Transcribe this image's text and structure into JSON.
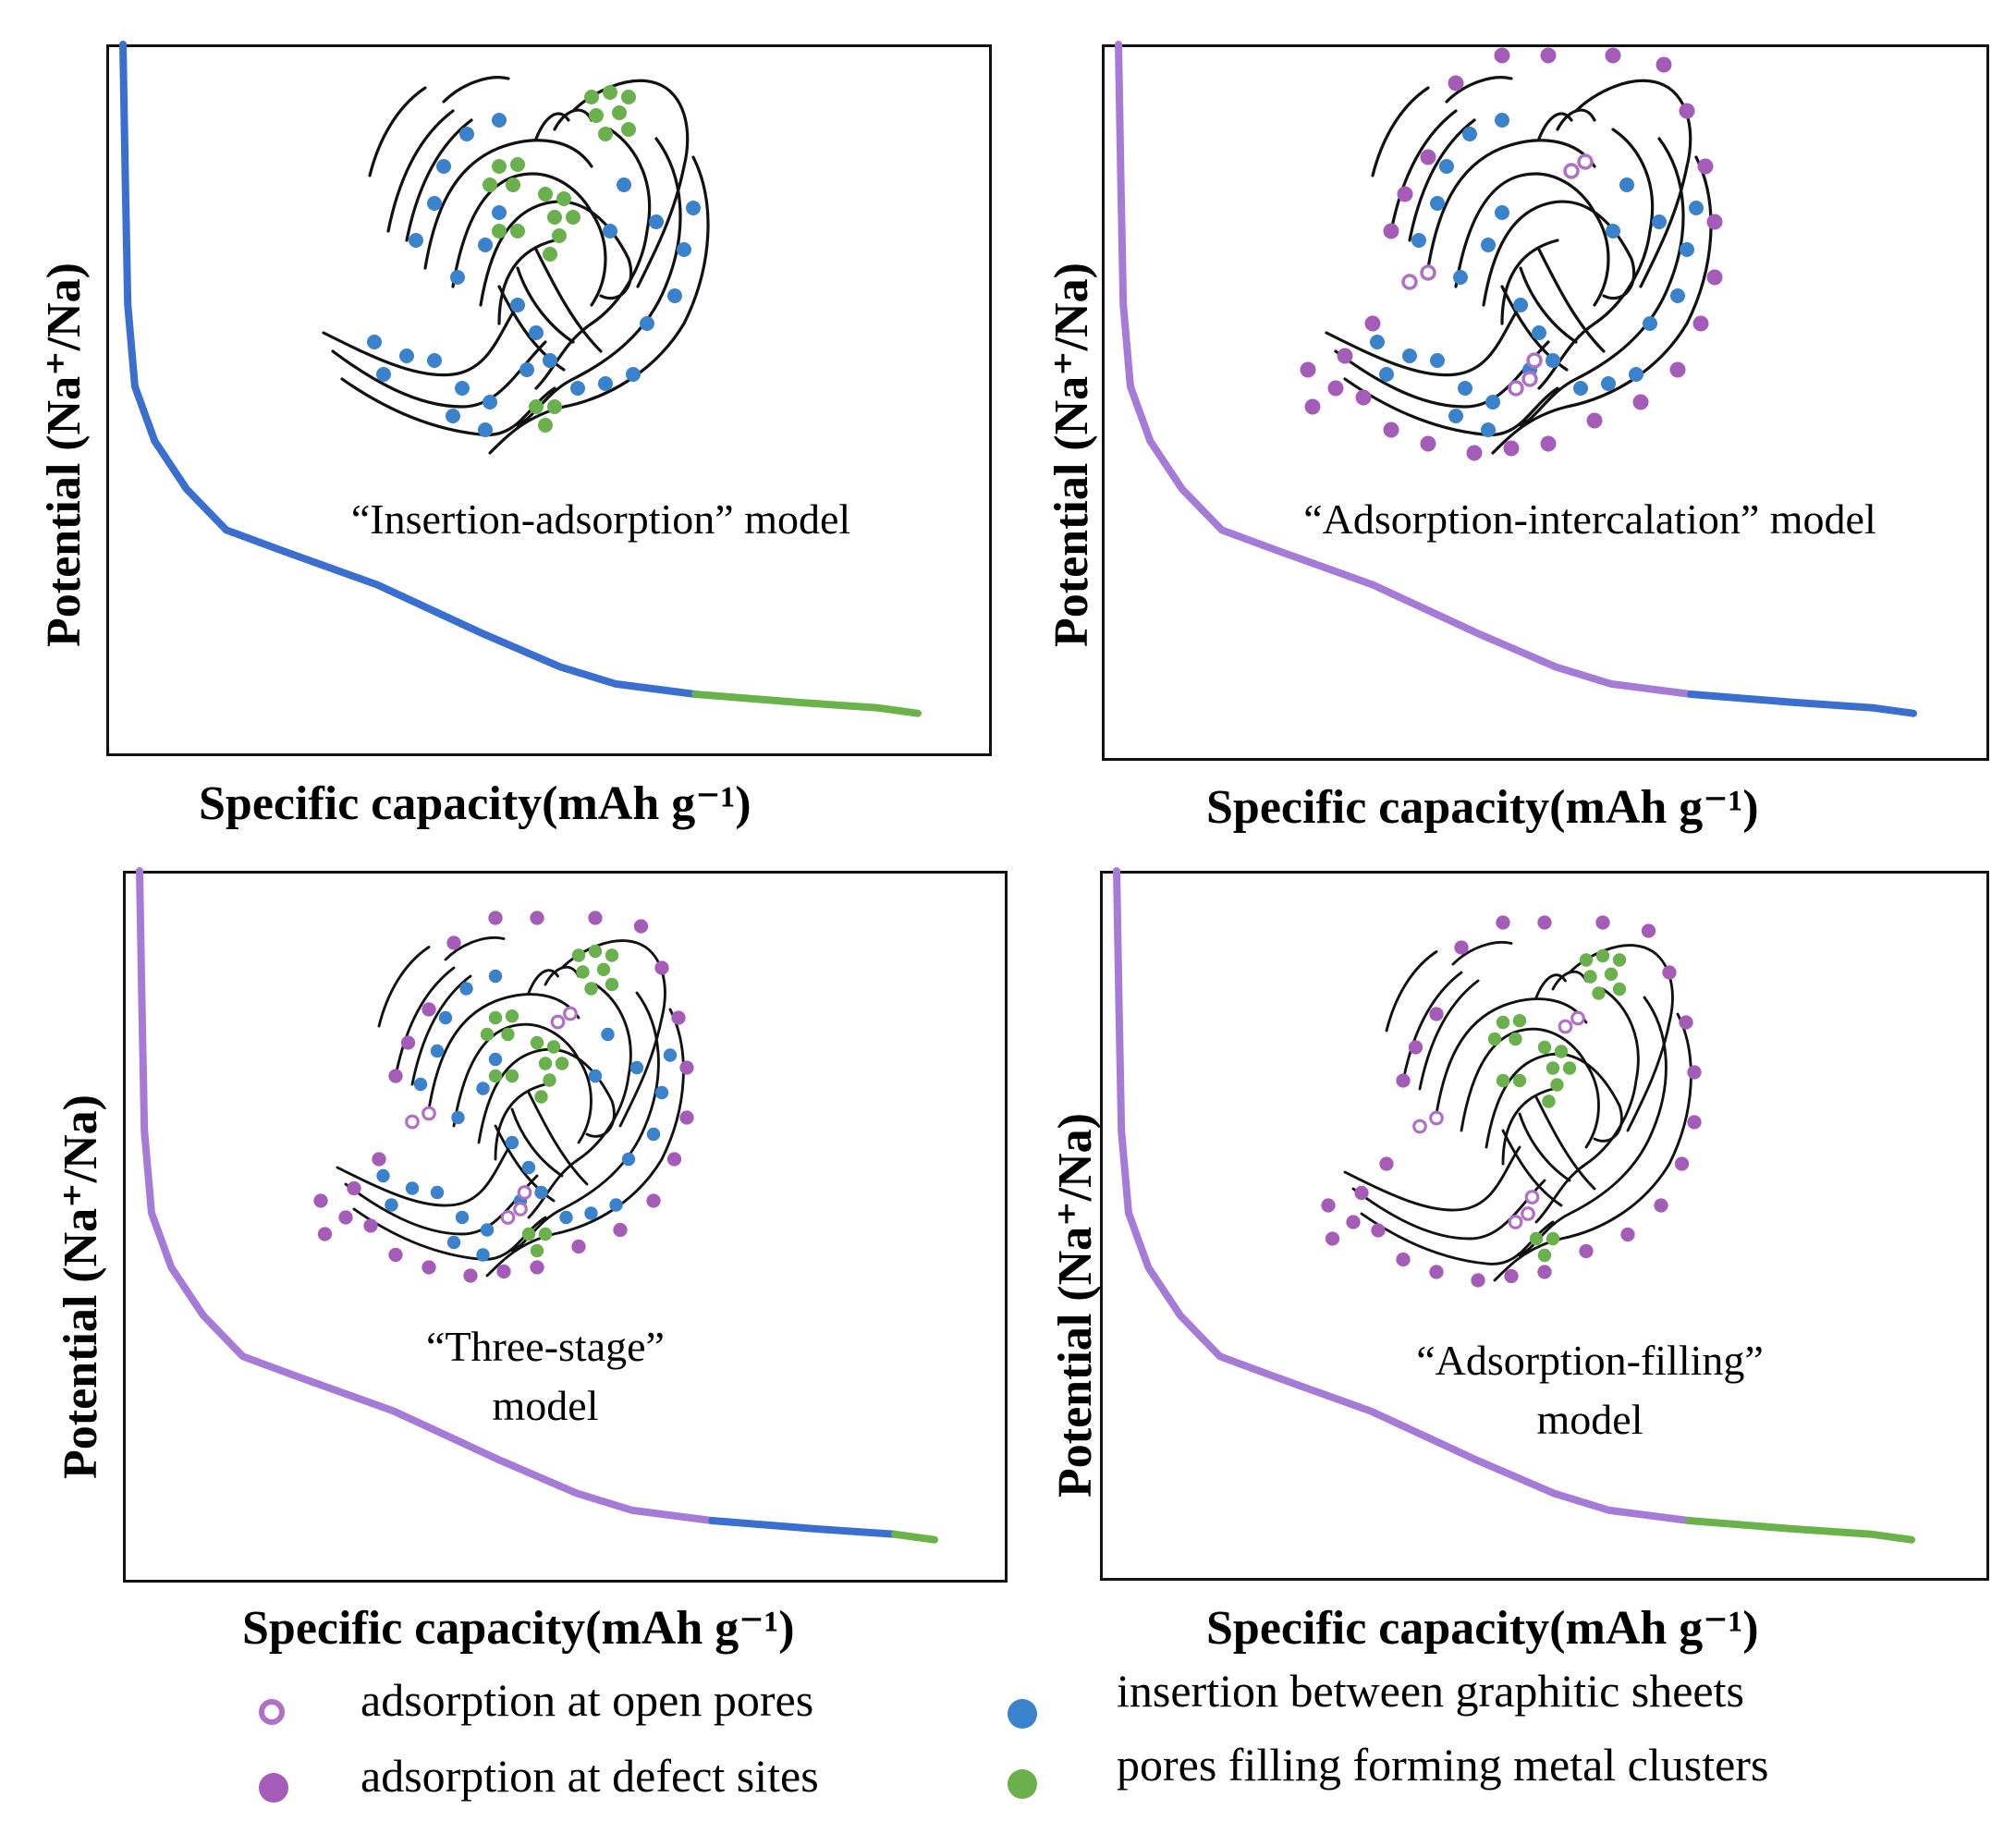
{
  "colors": {
    "purple": "#a67bd8",
    "blue": "#3a6fd0",
    "green": "#6ab24a",
    "open_pore": "#b070c8",
    "defect": "#a55cb8",
    "insertion": "#3b82cc",
    "cluster": "#6ab04c",
    "sheet": "#111111"
  },
  "panels": [
    {
      "id": "insertion-adsorption",
      "ylabel": "Potential (Na⁺/Na)",
      "xlabel": "Specific capacity(mAh g⁻¹)",
      "caption": [
        "“Insertion-adsorption” model"
      ],
      "curve_segments": [
        "blue",
        "green"
      ],
      "species": [
        "insertion",
        "cluster"
      ]
    },
    {
      "id": "adsorption-intercalation",
      "ylabel": "Potential (Na⁺/Na)",
      "xlabel": "Specific capacity(mAh g⁻¹)",
      "caption": [
        "“Adsorption-intercalation” model"
      ],
      "curve_segments": [
        "purple",
        "blue"
      ],
      "species": [
        "insertion",
        "defect",
        "open_pore"
      ]
    },
    {
      "id": "three-stage",
      "ylabel": "Potential (Na⁺/Na)",
      "xlabel": "Specific capacity(mAh g⁻¹)",
      "caption": [
        "“Three-stage”",
        "model"
      ],
      "curve_segments": [
        "purple",
        "blue",
        "green"
      ],
      "species": [
        "insertion",
        "cluster",
        "defect",
        "open_pore"
      ]
    },
    {
      "id": "adsorption-filling",
      "ylabel": "Potential (Na⁺/Na)",
      "xlabel": "Specific capacity(mAh g⁻¹)",
      "caption": [
        "“Adsorption-filling”",
        "model"
      ],
      "curve_segments": [
        "purple",
        "green"
      ],
      "species": [
        "cluster",
        "defect",
        "open_pore"
      ]
    }
  ],
  "legend": [
    {
      "marker": "open-circle",
      "color_key": "open_pore",
      "label": "adsorption at open pores"
    },
    {
      "marker": "filled-circle",
      "color_key": "defect",
      "label": "adsorption at defect sites"
    },
    {
      "marker": "filled-circle",
      "color_key": "insertion",
      "label": "insertion between graphitic sheets"
    },
    {
      "marker": "filled-circle",
      "color_key": "cluster",
      "label": "pores filling forming metal clusters"
    }
  ]
}
